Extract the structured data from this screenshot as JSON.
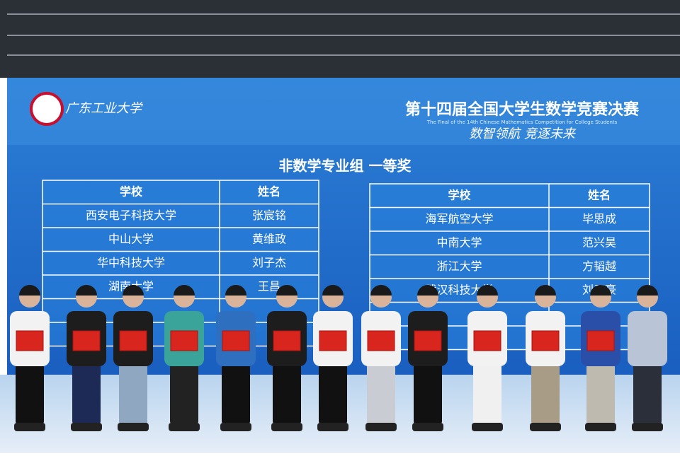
{
  "screen": {
    "logo_text": "广东工业大学",
    "title": "第十四届全国大学生数学竞赛决赛",
    "subtitle": "The Final of the 14th Chinese Mathematics Competition for College Students",
    "slogan": "数智领航 竞逐未来",
    "section": "非数学专业组 一等奖",
    "tables": [
      {
        "header": [
          "学校",
          "姓名"
        ],
        "rows": [
          [
            "西安电子科技大学",
            "张宸铭"
          ],
          [
            "中山大学",
            "黄维政"
          ],
          [
            "华中科技大学",
            "刘子杰"
          ],
          [
            "湖南大学",
            "王昌"
          ]
        ]
      },
      {
        "header": [
          "学校",
          "姓名"
        ],
        "rows": [
          [
            "海军航空大学",
            "毕思成"
          ],
          [
            "中南大学",
            "范兴昊"
          ],
          [
            "浙江大学",
            "方韬越"
          ],
          [
            "武汉科技大学",
            "刘子豪"
          ]
        ]
      }
    ]
  }
}
